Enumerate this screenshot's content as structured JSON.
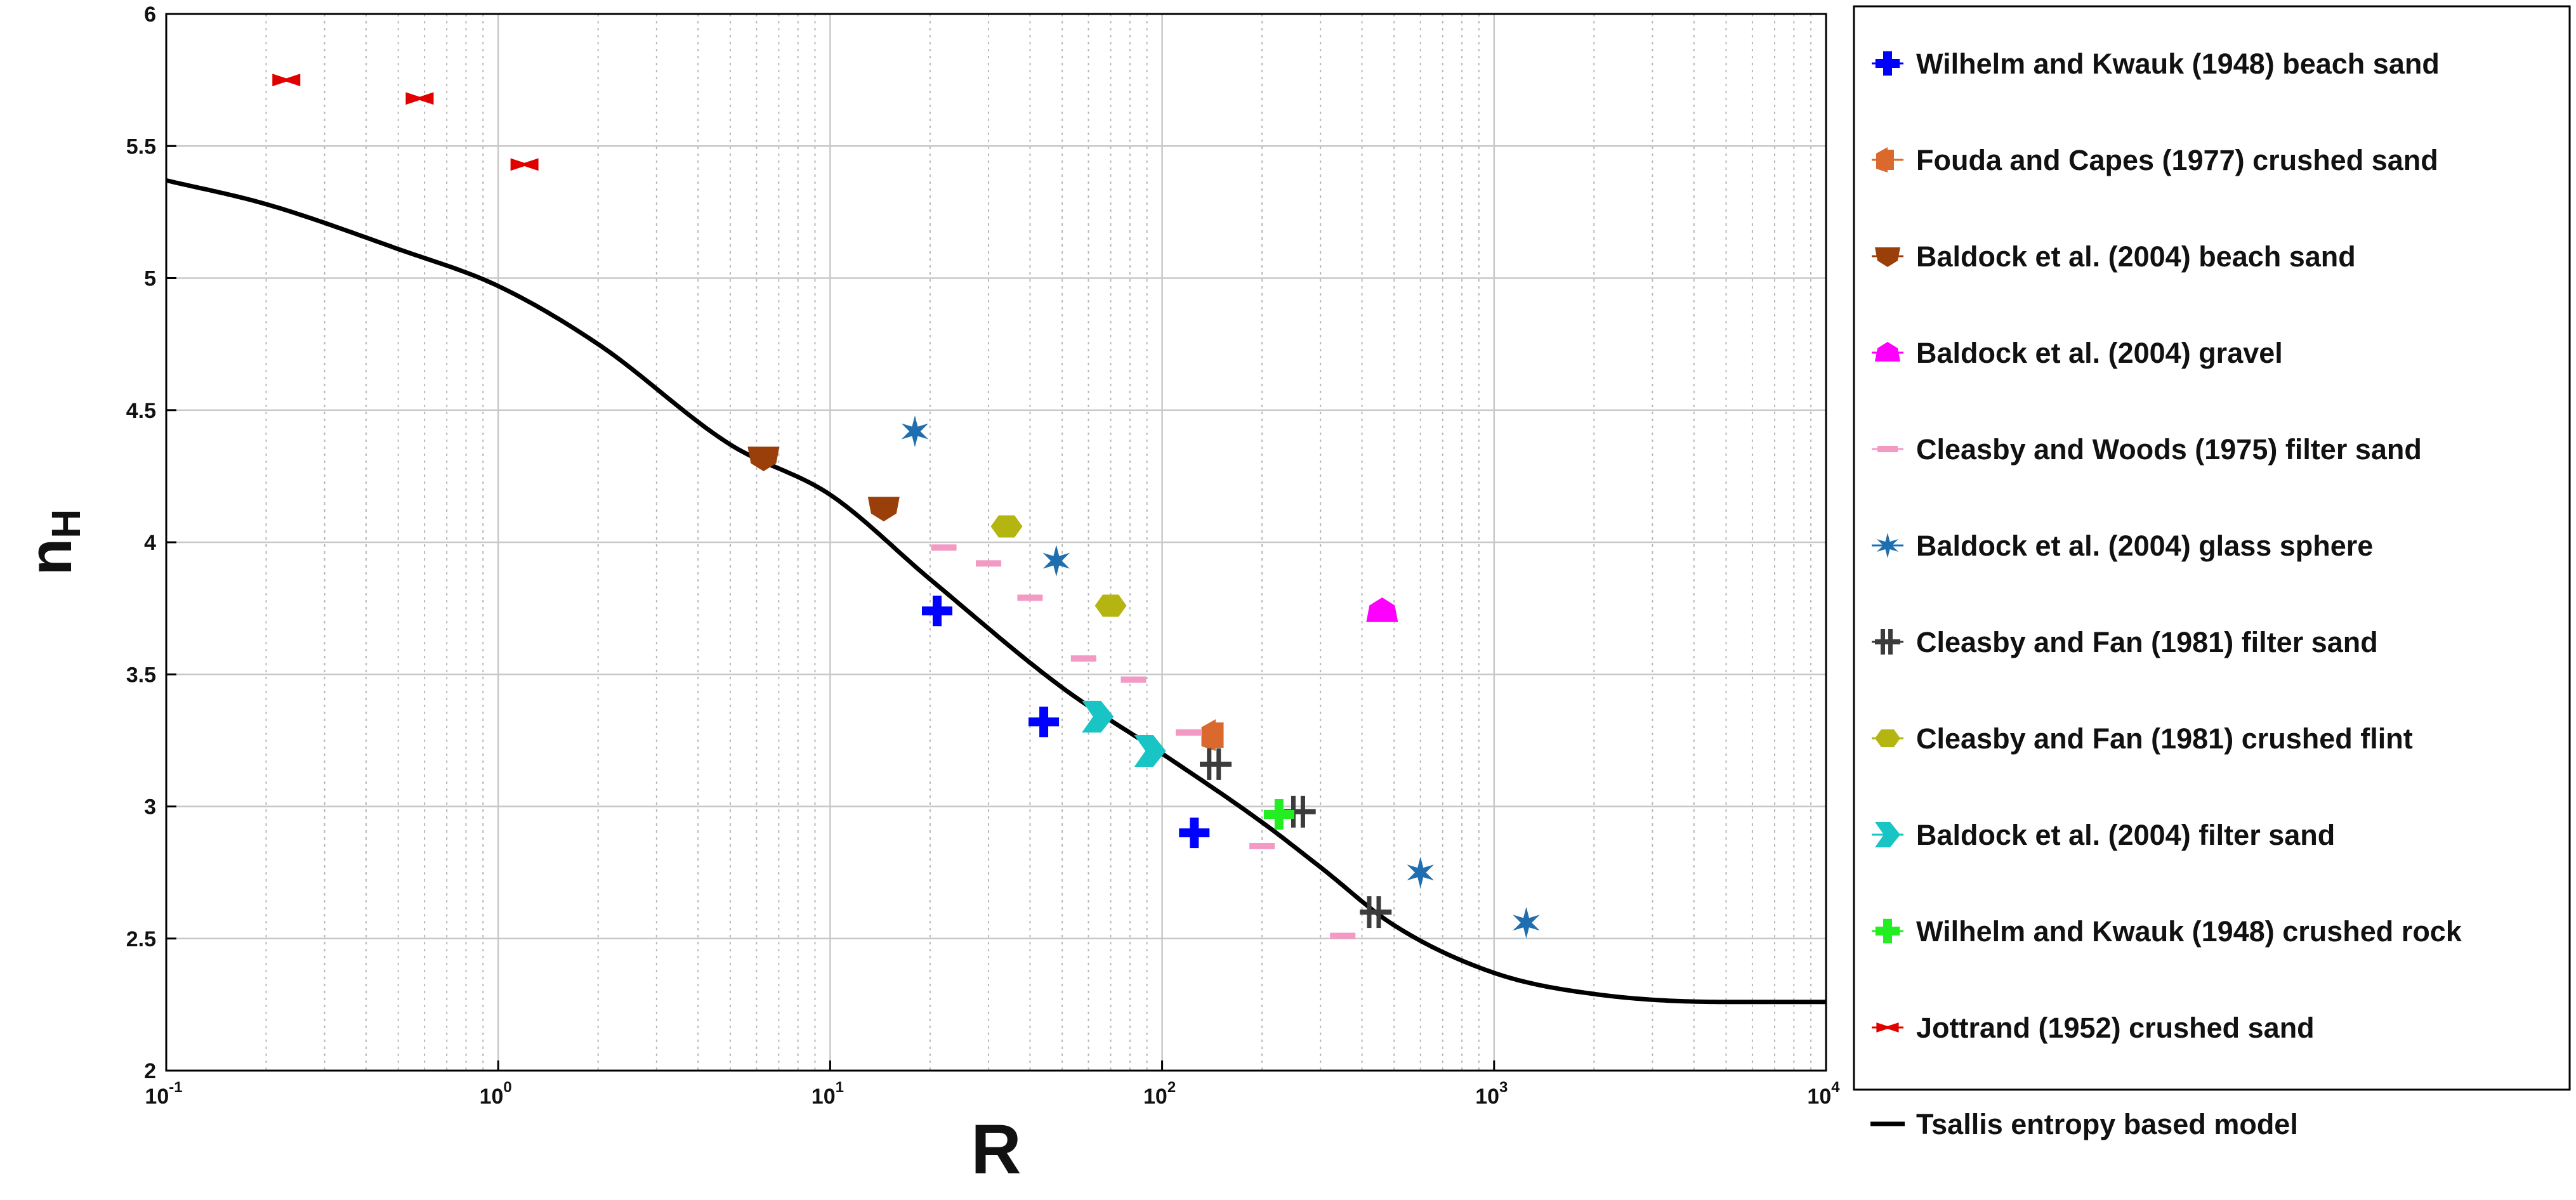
{
  "chart_data": {
    "type": "scatter",
    "title": "",
    "xlabel": "R",
    "ylabel_main": "n",
    "ylabel_sub": "H",
    "xscale": "log",
    "xlim": [
      0.1,
      10000
    ],
    "ylim": [
      2,
      6
    ],
    "x_ticks": [
      {
        "value": 0.1,
        "base": "10",
        "exp": "-1"
      },
      {
        "value": 1,
        "base": "10",
        "exp": "0"
      },
      {
        "value": 10,
        "base": "10",
        "exp": "1"
      },
      {
        "value": 100,
        "base": "10",
        "exp": "2"
      },
      {
        "value": 1000,
        "base": "10",
        "exp": "3"
      },
      {
        "value": 10000,
        "base": "10",
        "exp": "4"
      }
    ],
    "y_ticks": [
      {
        "value": 2,
        "label": "2"
      },
      {
        "value": 2.5,
        "label": "2.5"
      },
      {
        "value": 3,
        "label": "3"
      },
      {
        "value": 3.5,
        "label": "3.5"
      },
      {
        "value": 4,
        "label": "4"
      },
      {
        "value": 4.5,
        "label": "4.5"
      },
      {
        "value": 5,
        "label": "5"
      },
      {
        "value": 5.5,
        "label": "5.5"
      },
      {
        "value": 6,
        "label": "6"
      }
    ],
    "grid": true,
    "legend_position": "outside-right",
    "series": [
      {
        "name": "Wilhelm and Kwauk (1948) beach sand",
        "color": "#0000ff",
        "marker": "plus",
        "points": [
          [
            21,
            3.74
          ],
          [
            44,
            3.32
          ],
          [
            125,
            2.9
          ]
        ]
      },
      {
        "name": "Fouda and Capes (1977) crushed sand",
        "color": "#d9692c",
        "marker": "half-flag",
        "points": [
          [
            145,
            3.27
          ]
        ]
      },
      {
        "name": "Baldock et al. (2004) beach sand",
        "color": "#9a3f0a",
        "marker": "pentagon-down",
        "points": [
          [
            6.3,
            4.32
          ],
          [
            14.5,
            4.13
          ]
        ]
      },
      {
        "name": "Baldock et al. (2004) gravel",
        "color": "#ff00ff",
        "marker": "pentagon-up",
        "points": [
          [
            460,
            3.74
          ]
        ]
      },
      {
        "name": "Cleasby and Woods (1975) filter sand",
        "color": "#f29ac4",
        "marker": "dash",
        "points": [
          [
            22,
            3.98
          ],
          [
            30,
            3.92
          ],
          [
            40,
            3.79
          ],
          [
            58,
            3.56
          ],
          [
            82,
            3.48
          ],
          [
            120,
            3.28
          ],
          [
            200,
            2.85
          ],
          [
            350,
            2.51
          ]
        ]
      },
      {
        "name": "Baldock et al. (2004) glass sphere",
        "color": "#1f6fb0",
        "marker": "star",
        "points": [
          [
            18,
            4.42
          ],
          [
            48,
            3.93
          ],
          [
            600,
            2.75
          ],
          [
            1250,
            2.56
          ]
        ]
      },
      {
        "name": "Cleasby and Fan (1981) filter sand",
        "color": "#3c3c3c",
        "marker": "hash",
        "points": [
          [
            145,
            3.16
          ],
          [
            260,
            2.98
          ],
          [
            440,
            2.6
          ]
        ]
      },
      {
        "name": "Cleasby and Fan (1981) crushed flint",
        "color": "#b5b512",
        "marker": "hexagon",
        "points": [
          [
            34,
            4.06
          ],
          [
            70,
            3.76
          ]
        ]
      },
      {
        "name": "Baldock et al. (2004) filter sand",
        "color": "#18c4c4",
        "marker": "arrow-right",
        "points": [
          [
            64,
            3.34
          ],
          [
            92,
            3.21
          ]
        ]
      },
      {
        "name": "Wilhelm and Kwauk (1948) crushed rock",
        "color": "#22ee22",
        "marker": "plus",
        "points": [
          [
            225,
            2.97
          ]
        ]
      },
      {
        "name": "Jottrand (1952) crushed sand",
        "color": "#e00000",
        "marker": "bowtie",
        "points": [
          [
            0.23,
            5.75
          ],
          [
            0.58,
            5.68
          ],
          [
            1.2,
            5.43
          ]
        ]
      }
    ],
    "model": {
      "name": "Tsallis entropy based model",
      "color": "#000000",
      "x": [
        0.1,
        0.2,
        0.5,
        1,
        2,
        5,
        10,
        20,
        50,
        100,
        200,
        300,
        500,
        1000,
        2000,
        5000,
        10000
      ],
      "y": [
        5.37,
        5.28,
        5.11,
        4.97,
        4.75,
        4.37,
        4.18,
        3.86,
        3.45,
        3.2,
        2.94,
        2.77,
        2.55,
        2.37,
        2.29,
        2.26,
        2.26
      ]
    }
  }
}
